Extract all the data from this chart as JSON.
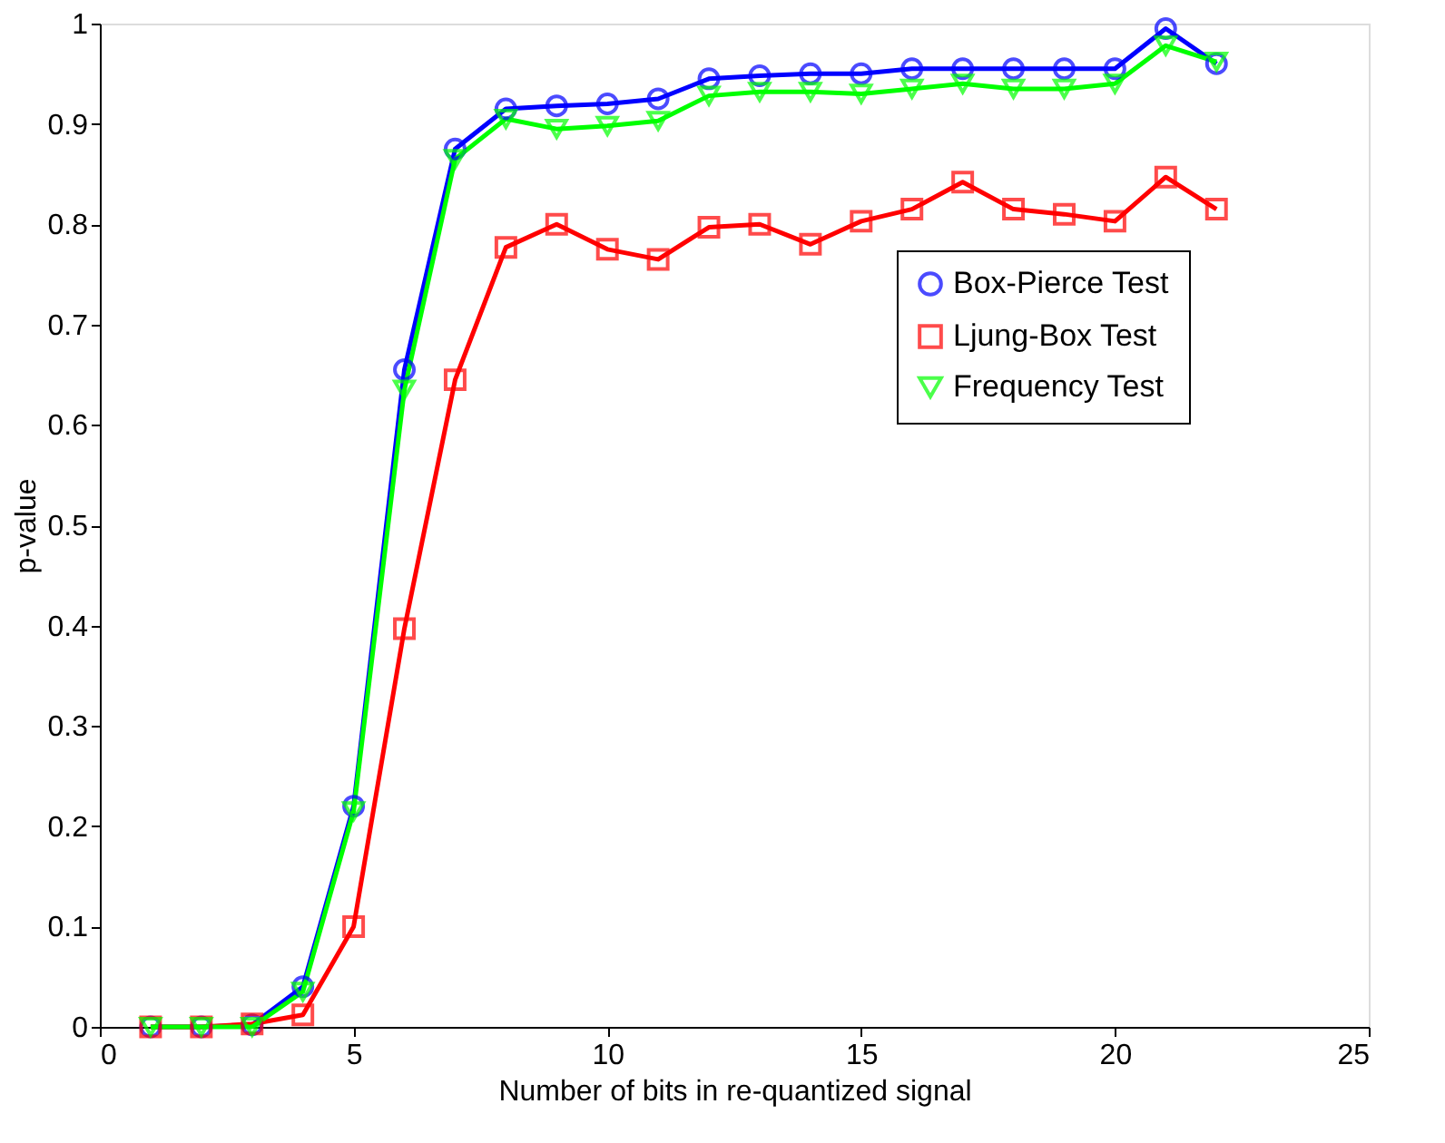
{
  "chart_data": {
    "type": "line",
    "xlabel": "Number of bits in re-quantized signal",
    "ylabel": "p-value",
    "x": [
      1,
      2,
      3,
      4,
      5,
      6,
      7,
      8,
      9,
      10,
      11,
      12,
      13,
      14,
      15,
      16,
      17,
      18,
      19,
      20,
      21,
      22
    ],
    "series": [
      {
        "name": "Box-Pierce Test",
        "color": "#0000ff",
        "marker": "circle",
        "values": [
          0,
          0,
          0.002,
          0.04,
          0.22,
          0.655,
          0.875,
          0.915,
          0.918,
          0.92,
          0.925,
          0.945,
          0.948,
          0.95,
          0.95,
          0.955,
          0.955,
          0.955,
          0.955,
          0.955,
          0.995,
          0.96
        ]
      },
      {
        "name": "Ljung-Box Test",
        "color": "#ff0000",
        "marker": "square",
        "values": [
          0,
          0,
          0.003,
          0.012,
          0.1,
          0.397,
          0.645,
          0.777,
          0.8,
          0.775,
          0.765,
          0.797,
          0.8,
          0.78,
          0.803,
          0.815,
          0.842,
          0.815,
          0.81,
          0.803,
          0.847,
          0.815
        ]
      },
      {
        "name": "Frequency Test",
        "color": "#00ff00",
        "marker": "triangle-down",
        "values": [
          0,
          0,
          0,
          0.035,
          0.215,
          0.635,
          0.865,
          0.905,
          0.895,
          0.898,
          0.903,
          0.928,
          0.932,
          0.932,
          0.93,
          0.935,
          0.94,
          0.935,
          0.935,
          0.94,
          0.978,
          0.962
        ]
      }
    ],
    "xlim": [
      0,
      25
    ],
    "xticks": [
      0,
      5,
      10,
      15,
      20,
      25
    ],
    "ylim": [
      0,
      1
    ],
    "yticks": [
      0,
      0.1,
      0.2,
      0.3,
      0.4,
      0.5,
      0.6,
      0.7,
      0.8,
      0.9,
      1
    ],
    "grid": false,
    "legend": "right",
    "line_style": "solid"
  }
}
